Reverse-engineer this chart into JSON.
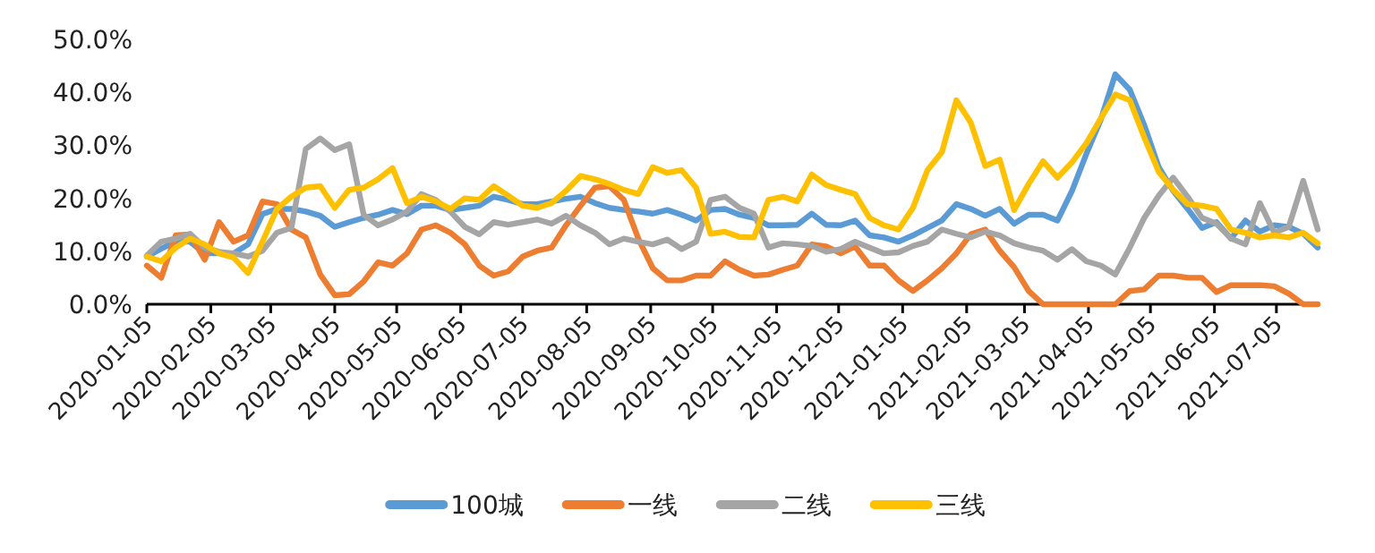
{
  "chart_data": {
    "type": "line",
    "legend": "bottom",
    "x": [
      "2020-01-05",
      "2020-01-12",
      "2020-01-19",
      "2020-01-26",
      "2020-02-02",
      "2020-02-09",
      "2020-02-16",
      "2020-02-23",
      "2020-03-01",
      "2020-03-08",
      "2020-03-15",
      "2020-03-22",
      "2020-03-29",
      "2020-04-05",
      "2020-04-12",
      "2020-04-19",
      "2020-04-26",
      "2020-05-03",
      "2020-05-10",
      "2020-05-17",
      "2020-05-24",
      "2020-05-31",
      "2020-06-07",
      "2020-06-14",
      "2020-06-21",
      "2020-06-28",
      "2020-07-05",
      "2020-07-12",
      "2020-07-19",
      "2020-07-26",
      "2020-08-02",
      "2020-08-09",
      "2020-08-16",
      "2020-08-23",
      "2020-08-30",
      "2020-09-06",
      "2020-09-13",
      "2020-09-20",
      "2020-09-27",
      "2020-10-04",
      "2020-10-11",
      "2020-10-18",
      "2020-10-25",
      "2020-11-01",
      "2020-11-08",
      "2020-11-15",
      "2020-11-22",
      "2020-11-29",
      "2020-12-06",
      "2020-12-13",
      "2020-12-20",
      "2020-12-27",
      "2021-01-03",
      "2021-01-10",
      "2021-01-17",
      "2021-01-24",
      "2021-01-31",
      "2021-02-07",
      "2021-02-14",
      "2021-02-21",
      "2021-02-28",
      "2021-03-07",
      "2021-03-14",
      "2021-03-21",
      "2021-03-28",
      "2021-04-04",
      "2021-04-11",
      "2021-04-18",
      "2021-04-25",
      "2021-05-02",
      "2021-05-09",
      "2021-05-16",
      "2021-05-23",
      "2021-05-30",
      "2021-06-06",
      "2021-06-13",
      "2021-06-20",
      "2021-06-27",
      "2021-07-04",
      "2021-07-11",
      "2021-07-18",
      "2021-07-25"
    ],
    "xlim": [
      "2020-01-05",
      "2021-07-25"
    ],
    "xticks": [
      "2020-01-05",
      "2020-02-05",
      "2020-03-05",
      "2020-04-05",
      "2020-05-05",
      "2020-06-05",
      "2020-07-05",
      "2020-08-05",
      "2020-09-05",
      "2020-10-05",
      "2020-11-05",
      "2020-12-05",
      "2021-01-05",
      "2021-02-05",
      "2021-03-05",
      "2021-04-05",
      "2021-05-05",
      "2021-06-05",
      "2021-07-05"
    ],
    "ylim": [
      0,
      50
    ],
    "yticks": [
      {
        "value": 0,
        "label": "0.0%"
      },
      {
        "value": 10,
        "label": "10.0%"
      },
      {
        "value": 20,
        "label": "20.0%"
      },
      {
        "value": 30,
        "label": "30.0%"
      },
      {
        "value": 40,
        "label": "40.0%"
      },
      {
        "value": 50,
        "label": "50.0%"
      }
    ],
    "series": [
      {
        "name": "100城",
        "color": "#5b9bd5",
        "values": [
          9,
          10.5,
          11.8,
          11.8,
          9.6,
          9.6,
          9.6,
          11.3,
          17,
          18,
          18,
          17.5,
          16.7,
          14.6,
          15.5,
          16.3,
          16.9,
          17.8,
          17,
          18.6,
          18.6,
          17.8,
          18.2,
          18.6,
          20.3,
          19.7,
          18.9,
          18.9,
          19.4,
          19.9,
          20.3,
          19.1,
          18.2,
          17.8,
          17.5,
          17.1,
          17.8,
          16.9,
          15.8,
          17.8,
          18,
          16.9,
          16.3,
          14.9,
          14.9,
          15,
          17.1,
          15,
          14.9,
          15.8,
          13,
          12.6,
          11.8,
          13,
          14.4,
          15.8,
          18.9,
          18,
          16.7,
          18,
          15.2,
          16.9,
          16.9,
          15.8,
          21.4,
          28.4,
          34.9,
          43.4,
          40.5,
          33.8,
          25.9,
          21.4,
          18,
          14.4,
          15.5,
          12.4,
          15.8,
          13.7,
          14.9,
          14.6,
          13.3,
          10.7
        ]
      },
      {
        "name": "一线",
        "color": "#ed7d31",
        "values": [
          7.3,
          5,
          13,
          13.2,
          8.4,
          15.5,
          11.8,
          13,
          19.4,
          18.9,
          14.1,
          12.6,
          5.6,
          1.7,
          1.9,
          4.3,
          7.9,
          7.3,
          9.6,
          14.1,
          14.9,
          13.5,
          11.3,
          7.3,
          5.4,
          6.2,
          9,
          10.1,
          10.7,
          14.9,
          18.6,
          22,
          22.3,
          19.7,
          12.4,
          6.8,
          4.5,
          4.5,
          5.4,
          5.4,
          8.1,
          6.5,
          5.4,
          5.6,
          6.5,
          7.3,
          11.3,
          10.9,
          9.6,
          10.9,
          7.3,
          7.3,
          4.5,
          2.5,
          4.5,
          6.8,
          9.6,
          13.2,
          14.1,
          10.1,
          7,
          2.5,
          0,
          0,
          0,
          0,
          0,
          0,
          2.5,
          2.8,
          5.4,
          5.4,
          5,
          5,
          2.3,
          3.6,
          3.6,
          3.6,
          3.4,
          2,
          0,
          0
        ]
      },
      {
        "name": "二线",
        "color": "#a5a5a5",
        "values": [
          9.2,
          11.8,
          12.4,
          13.3,
          10.7,
          9.9,
          9.6,
          9,
          10.1,
          13.5,
          14.4,
          29.3,
          31.3,
          29.1,
          30.2,
          16.9,
          14.9,
          16,
          17.5,
          20.8,
          19.7,
          17.5,
          14.6,
          13.2,
          15.5,
          15,
          15.5,
          16,
          15.2,
          16.7,
          14.9,
          13.5,
          11.3,
          12.4,
          11.8,
          11.3,
          12.2,
          10.4,
          11.8,
          19.7,
          20.3,
          18.2,
          17.1,
          10.7,
          11.5,
          11.3,
          11,
          9.9,
          10.4,
          11.8,
          10.7,
          9.6,
          9.8,
          11,
          11.8,
          14.1,
          13.3,
          12.6,
          13.7,
          13,
          11.5,
          10.7,
          10.1,
          8.4,
          10.4,
          8.1,
          7.3,
          5.6,
          10.7,
          16.3,
          20.5,
          23.9,
          20.3,
          16.3,
          15.2,
          12.4,
          11.3,
          19.1,
          13.5,
          14.6,
          23.3,
          14.1
        ]
      },
      {
        "name": "三线",
        "color": "#ffc000",
        "values": [
          9,
          8.1,
          10.7,
          12.4,
          11.3,
          9.6,
          8.8,
          5.9,
          11.8,
          18,
          20.3,
          22,
          22.3,
          18.2,
          21.6,
          22,
          23.6,
          25.7,
          19.1,
          20.3,
          19.4,
          18,
          20,
          19.7,
          22.3,
          20.5,
          18.6,
          18.2,
          19.1,
          21.4,
          24.2,
          23.6,
          22.7,
          21.6,
          20.8,
          25.9,
          24.8,
          25.3,
          22,
          13.3,
          13.7,
          12.7,
          12.6,
          19.7,
          20.3,
          19.4,
          24.5,
          22.5,
          21.6,
          20.8,
          16.3,
          14.9,
          14.1,
          18.2,
          25.3,
          28.7,
          38.5,
          34.3,
          26.1,
          27.3,
          17.8,
          22.7,
          27,
          23.9,
          26.8,
          30.4,
          35.1,
          39.6,
          38.5,
          31.5,
          25,
          21.6,
          18.9,
          18.6,
          18,
          14.1,
          13.5,
          12.6,
          13,
          12.6,
          13.5,
          11.5
        ]
      }
    ]
  }
}
